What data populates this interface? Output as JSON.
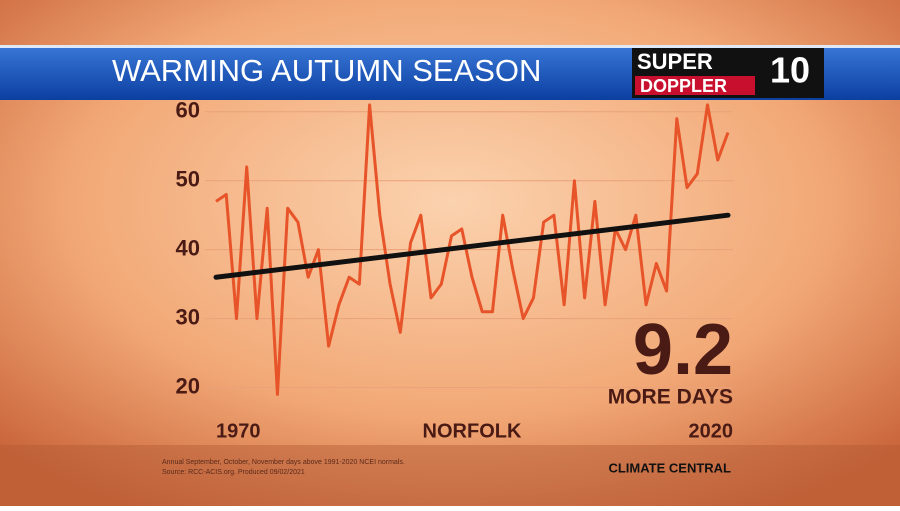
{
  "header": {
    "title": "WARMING AUTUMN SEASON",
    "logo_top": "SUPER",
    "logo_bottom": "DOPPLER",
    "logo_number": "10"
  },
  "chart_data": {
    "type": "line",
    "location": "NORFOLK",
    "x": [
      1970,
      1971,
      1972,
      1973,
      1974,
      1975,
      1976,
      1977,
      1978,
      1979,
      1980,
      1981,
      1982,
      1983,
      1984,
      1985,
      1986,
      1987,
      1988,
      1989,
      1990,
      1991,
      1992,
      1993,
      1994,
      1995,
      1996,
      1997,
      1998,
      1999,
      2000,
      2001,
      2002,
      2003,
      2004,
      2005,
      2006,
      2007,
      2008,
      2009,
      2010,
      2011,
      2012,
      2013,
      2014,
      2015,
      2016,
      2017,
      2018,
      2019,
      2020
    ],
    "values": [
      47,
      48,
      30,
      52,
      30,
      46,
      19,
      46,
      44,
      36,
      40,
      26,
      32,
      36,
      35,
      61,
      45,
      35,
      28,
      41,
      45,
      33,
      35,
      42,
      43,
      36,
      31,
      31,
      45,
      37,
      30,
      33,
      44,
      45,
      32,
      50,
      33,
      47,
      32,
      43,
      40,
      45,
      32,
      38,
      34,
      59,
      49,
      51,
      61,
      53,
      57
    ],
    "color": "#e8542a",
    "trend": {
      "x": [
        1970,
        2020
      ],
      "values": [
        36,
        45
      ],
      "color": "#111111"
    },
    "xlim": [
      1970,
      2020
    ],
    "xticks": [
      1970,
      2020
    ],
    "ylim": [
      15,
      62
    ],
    "yticks": [
      20,
      30,
      40,
      50,
      60
    ],
    "annotations": {
      "big_number": "9.2",
      "big_label": "MORE DAYS"
    },
    "footnote": [
      "Annual September, October, November days above 1991-2020 NCEI normals.",
      "Source: RCC-ACIS.org. Produced 09/02/2021"
    ],
    "credit": "CLIMATE CENTRAL"
  }
}
